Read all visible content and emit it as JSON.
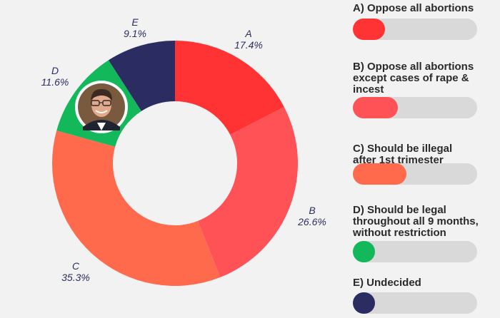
{
  "chart_data": {
    "type": "pie",
    "subtype": "donut",
    "slices": [
      {
        "key": "A",
        "pct_label": "17.4%",
        "value": 17.4,
        "color": "#ff3333"
      },
      {
        "key": "B",
        "pct_label": "26.6%",
        "value": 26.6,
        "color": "#ff5257"
      },
      {
        "key": "C",
        "pct_label": "35.3%",
        "value": 35.3,
        "color": "#ff6a4d"
      },
      {
        "key": "D",
        "pct_label": "11.6%",
        "value": 11.6,
        "color": "#12b85a"
      },
      {
        "key": "E",
        "pct_label": "9.1%",
        "value": 9.1,
        "color": "#2b2d62"
      }
    ],
    "center_image": "politician-portrait",
    "legend": [
      {
        "lines": [
          "A) Oppose all abortions"
        ],
        "fraction": 0.26,
        "color": "#ff3333"
      },
      {
        "lines": [
          "B) Oppose all abortions",
          "except cases of rape &",
          "incest"
        ],
        "fraction": 0.36,
        "color": "#ff5257"
      },
      {
        "lines": [
          "C) Should be illegal",
          "after  1st trimester"
        ],
        "fraction": 0.43,
        "color": "#ff6a4d"
      },
      {
        "lines": [
          "D) Should be legal",
          "throughout all 9 months,",
          "without restriction"
        ],
        "fraction": 0.18,
        "color": "#12b85a"
      },
      {
        "lines": [
          "E) Undecided"
        ],
        "fraction": 0.18,
        "color": "#2b2d62"
      }
    ],
    "bar_track_color": "#d9d9d9",
    "background": "#f2f2f2"
  }
}
